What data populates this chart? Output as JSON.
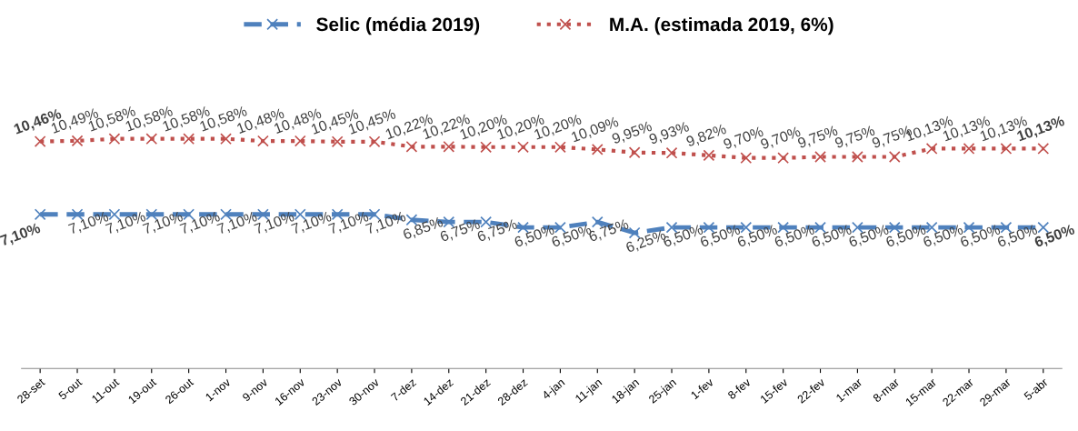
{
  "chart_data": {
    "type": "line",
    "categories": [
      "28-set",
      "5-out",
      "11-out",
      "19-out",
      "26-out",
      "1-nov",
      "9-nov",
      "16-nov",
      "23-nov",
      "30-nov",
      "7-dez",
      "14-dez",
      "21-dez",
      "28-dez",
      "4-jan",
      "11-jan",
      "18-jan",
      "25-jan",
      "1-fev",
      "8-fev",
      "15-fev",
      "22-fev",
      "1-mar",
      "8-mar",
      "15-mar",
      "22-mar",
      "29-mar",
      "5-abr"
    ],
    "series": [
      {
        "name": "Selic (média 2019)",
        "color": "#4f81bd",
        "line_style": "dashed",
        "marker": "cross",
        "values": [
          7.1,
          7.1,
          7.1,
          7.1,
          7.1,
          7.1,
          7.1,
          7.1,
          7.1,
          7.1,
          6.85,
          6.75,
          6.75,
          6.5,
          6.5,
          6.75,
          6.25,
          6.5,
          6.5,
          6.5,
          6.5,
          6.5,
          6.5,
          6.5,
          6.5,
          6.5,
          6.5,
          6.5
        ],
        "value_labels": [
          "7,10%",
          "7,10%",
          "7,10%",
          "7,10%",
          "7,10%",
          "7,10%",
          "7,10%",
          "7,10%",
          "7,10%",
          "7,10%",
          "6,85%",
          "6,75%",
          "6,75%",
          "6,50%",
          "6,50%",
          "6,75%",
          "6,25%",
          "6,50%",
          "6,50%",
          "6,50%",
          "6,50%",
          "6,50%",
          "6,50%",
          "6,50%",
          "6,50%",
          "6,50%",
          "6,50%",
          "6,50%"
        ]
      },
      {
        "name": "M.A. (estimada 2019, 6%)",
        "color": "#c0504d",
        "line_style": "dotted",
        "marker": "cross",
        "values": [
          10.46,
          10.49,
          10.58,
          10.58,
          10.58,
          10.58,
          10.48,
          10.48,
          10.45,
          10.45,
          10.22,
          10.22,
          10.2,
          10.2,
          10.2,
          10.09,
          9.95,
          9.93,
          9.82,
          9.7,
          9.7,
          9.75,
          9.75,
          9.75,
          10.13,
          10.13,
          10.13,
          10.13
        ],
        "value_labels": [
          "10,46%",
          "10,49%",
          "10,58%",
          "10,58%",
          "10,58%",
          "10,58%",
          "10,48%",
          "10,48%",
          "10,45%",
          "10,45%",
          "10,22%",
          "10,22%",
          "10,20%",
          "10,20%",
          "10,20%",
          "10,09%",
          "9,95%",
          "9,93%",
          "9,82%",
          "9,70%",
          "9,70%",
          "9,75%",
          "9,75%",
          "9,75%",
          "10,13%",
          "10,13%",
          "10,13%",
          "10,13%"
        ]
      }
    ],
    "legend": "top",
    "grid": false
  }
}
